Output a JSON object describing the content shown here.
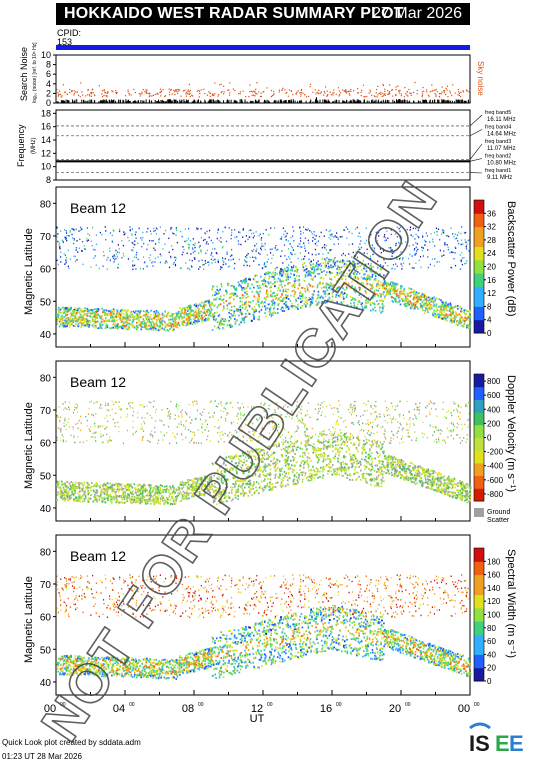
{
  "header": {
    "title": "HOKKAIDO WEST RADAR SUMMARY PLOT",
    "date": "27 Mar 2026",
    "cpid_label": "CPID:",
    "cpid_value": "153",
    "cpid_color": "#1818e8"
  },
  "footer": {
    "credit": "Quick Look plot created by sddata.adm",
    "timestamp": "01:23 UT 28 Mar 2026",
    "logo_text": "ISEE"
  },
  "watermark": "NOT FOR PUBLICATION",
  "chart_data": [
    {
      "type": "scatter",
      "name": "noise",
      "ylabel": "Search Noise",
      "ylabel_sub": "log₁₀ (noise) [ref. to 10⁶ Hz]",
      "right_label": "Sky noise",
      "ylim": [
        0,
        10
      ],
      "yticks": [
        0,
        2,
        4,
        6,
        8,
        10
      ],
      "xlim": [
        0,
        24
      ],
      "search_noise_level": 0.3,
      "sky_noise_level": 2.2,
      "spike_hour": 15.1,
      "spike_value": 1.2,
      "colors": {
        "search": "#000000",
        "sky": "#e05010"
      }
    },
    {
      "type": "line",
      "name": "frequency",
      "ylabel": "Frequency",
      "ylabel_sub": "(MHz)",
      "ylim": [
        8,
        18.5
      ],
      "yticks": [
        8,
        10,
        12,
        14,
        16,
        18
      ],
      "xlim": [
        0,
        24
      ],
      "values": [
        10.8,
        10.8,
        10.8,
        10.8
      ],
      "x": [
        0,
        8,
        16,
        24
      ],
      "bands": [
        {
          "label": "freq band5",
          "value": "16.11 MHz",
          "level": 16.11
        },
        {
          "label": "freq band4",
          "value": "14.64 MHz",
          "level": 14.64
        },
        {
          "label": "freq band3",
          "value": "11.07 MHz",
          "level": 11.07
        },
        {
          "label": "freq band2",
          "value": "10.80 MHz",
          "level": 10.8
        },
        {
          "label": "freq band1",
          "value": "9.11 MHz",
          "level": 9.11
        }
      ]
    },
    {
      "type": "heatmap",
      "name": "power",
      "beam": "Beam 12",
      "ylabel": "Magnetic Latitude",
      "ylim": [
        36,
        85
      ],
      "yticks": [
        40,
        50,
        60,
        70,
        80
      ],
      "xlim": [
        0,
        24
      ],
      "colorbar_label": "Backscatter Power (dB)",
      "colorbar_ticks": [
        "0",
        "4",
        "8",
        "12",
        "16",
        "20",
        "24",
        "28",
        "32",
        "36"
      ],
      "colorbar_range": [
        0,
        40
      ]
    },
    {
      "type": "heatmap",
      "name": "velocity",
      "beam": "Beam 12",
      "ylabel": "Magnetic Latitude",
      "ylim": [
        36,
        85
      ],
      "yticks": [
        40,
        50,
        60,
        70,
        80
      ],
      "xlim": [
        0,
        24
      ],
      "colorbar_label": "Doppler Velocity (m s⁻¹)",
      "colorbar_ticks": [
        "-800",
        "-600",
        "-400",
        "-200",
        "0",
        "200",
        "400",
        "600",
        "800"
      ],
      "colorbar_range": [
        -900,
        900
      ],
      "ground_scatter_label": "Ground Scatter",
      "ground_scatter_color": "#a0a0a0"
    },
    {
      "type": "heatmap",
      "name": "width",
      "beam": "Beam 12",
      "ylabel": "Magnetic Latitude",
      "ylim": [
        36,
        85
      ],
      "yticks": [
        40,
        50,
        60,
        70,
        80
      ],
      "xlim": [
        0,
        24
      ],
      "xlabel": "UT",
      "xticks": [
        "00",
        "04",
        "08",
        "12",
        "16",
        "20",
        "00"
      ],
      "colorbar_label": "Spectral Width (m s⁻¹)",
      "colorbar_ticks": [
        "0",
        "20",
        "40",
        "60",
        "80",
        "100",
        "120",
        "140",
        "160",
        "180"
      ],
      "colorbar_range": [
        0,
        200
      ]
    }
  ]
}
